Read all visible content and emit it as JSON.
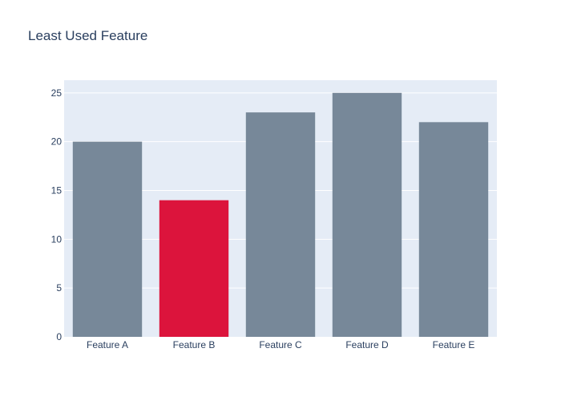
{
  "colors": {
    "plot_background": "#e5ecf6",
    "page_background": "#ffffff",
    "default_bar": "#778899",
    "highlight_bar": "#dc143c",
    "text": "#2a3f5f",
    "grid": "#ffffff"
  },
  "chart_data": {
    "type": "bar",
    "title": "Least Used Feature",
    "xlabel": "",
    "ylabel": "",
    "categories": [
      "Feature A",
      "Feature B",
      "Feature C",
      "Feature D",
      "Feature E"
    ],
    "values": [
      20,
      14,
      23,
      25,
      22
    ],
    "highlighted_category": "Feature B",
    "ylim": [
      0,
      26.3
    ],
    "yticks": [
      0,
      5,
      10,
      15,
      20,
      25
    ],
    "grid": true,
    "legend": "none"
  }
}
